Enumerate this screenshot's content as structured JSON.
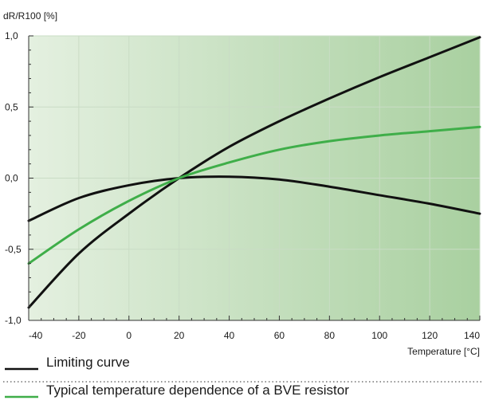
{
  "chart_data": {
    "type": "line",
    "title": "",
    "ylabel": "dR/R100 [%]",
    "xlabel": "Temperature [°C]",
    "xlim": [
      -40,
      140
    ],
    "ylim": [
      -1.0,
      1.0
    ],
    "x_ticks": [
      -40,
      -20,
      0,
      20,
      40,
      60,
      80,
      100,
      120,
      140
    ],
    "x_tick_labels": [
      "-40",
      "-20",
      "0",
      "20",
      "40",
      "60",
      "80",
      "100",
      "120",
      "140"
    ],
    "y_ticks": [
      -1.0,
      -0.5,
      0.0,
      0.5,
      1.0
    ],
    "y_tick_labels": [
      "-1,0",
      "-0,5",
      "0,0",
      "0,5",
      "1,0"
    ],
    "grid": true,
    "legend_position": "bottom",
    "legend": [
      {
        "label": "Limiting curve",
        "color": "#111111"
      },
      {
        "label": "Typical temperature dependence of a BVE resistor",
        "color": "#3fae49"
      }
    ],
    "series": [
      {
        "name": "Limiting curve",
        "role": "upper",
        "color": "#111111",
        "x": [
          -40,
          -20,
          0,
          20,
          40,
          60,
          80,
          100,
          120,
          140
        ],
        "y": [
          -0.91,
          -0.53,
          -0.25,
          0.0,
          0.22,
          0.4,
          0.56,
          0.71,
          0.85,
          0.99
        ]
      },
      {
        "name": "Limiting curve",
        "role": "lower",
        "color": "#111111",
        "x": [
          -40,
          -20,
          0,
          20,
          40,
          60,
          80,
          100,
          120,
          140
        ],
        "y": [
          -0.3,
          -0.14,
          -0.05,
          0.0,
          0.01,
          -0.01,
          -0.06,
          -0.12,
          -0.18,
          -0.25
        ]
      },
      {
        "name": "Typical temperature dependence of a BVE resistor",
        "color": "#3fae49",
        "x": [
          -40,
          -20,
          0,
          20,
          40,
          60,
          80,
          100,
          120,
          140
        ],
        "y": [
          -0.6,
          -0.36,
          -0.16,
          0.0,
          0.11,
          0.2,
          0.26,
          0.3,
          0.33,
          0.36
        ]
      }
    ]
  }
}
